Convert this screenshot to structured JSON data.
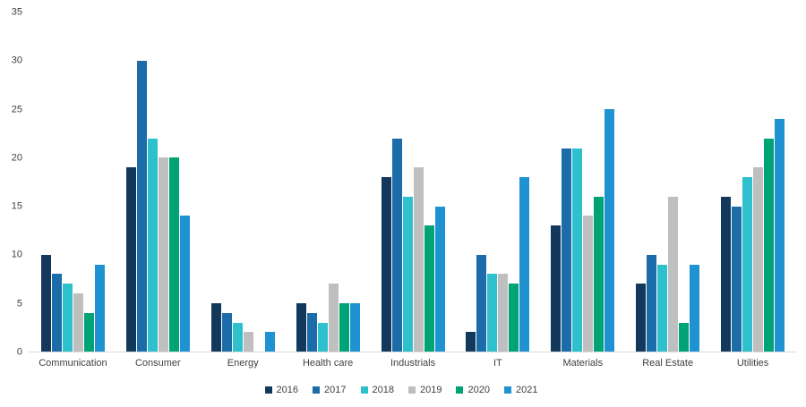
{
  "chart_data": {
    "type": "bar",
    "title": "",
    "xlabel": "",
    "ylabel": "",
    "ylim": [
      0,
      35
    ],
    "yticks": [
      0,
      5,
      10,
      15,
      20,
      25,
      30,
      35
    ],
    "grid": false,
    "legend_position": "bottom",
    "categories": [
      "Communication",
      "Consumer",
      "Energy",
      "Health care",
      "Industrials",
      "IT",
      "Materials",
      "Real Estate",
      "Utilities"
    ],
    "series": [
      {
        "name": "2016",
        "color": "#12395b",
        "values": [
          10,
          19,
          5,
          5,
          18,
          2,
          13,
          7,
          16
        ]
      },
      {
        "name": "2017",
        "color": "#1b6ca8",
        "values": [
          8,
          30,
          4,
          4,
          22,
          10,
          21,
          10,
          15
        ]
      },
      {
        "name": "2018",
        "color": "#2fc0ce",
        "values": [
          7,
          22,
          3,
          3,
          16,
          8,
          21,
          9,
          18
        ]
      },
      {
        "name": "2019",
        "color": "#bfbfbf",
        "values": [
          6,
          20,
          2,
          7,
          19,
          8,
          14,
          16,
          19
        ]
      },
      {
        "name": "2020",
        "color": "#00a376",
        "values": [
          4,
          20,
          0,
          5,
          13,
          7,
          16,
          3,
          22
        ]
      },
      {
        "name": "2021",
        "color": "#1f93d1",
        "values": [
          9,
          14,
          2,
          5,
          15,
          18,
          25,
          9,
          24
        ]
      }
    ]
  }
}
